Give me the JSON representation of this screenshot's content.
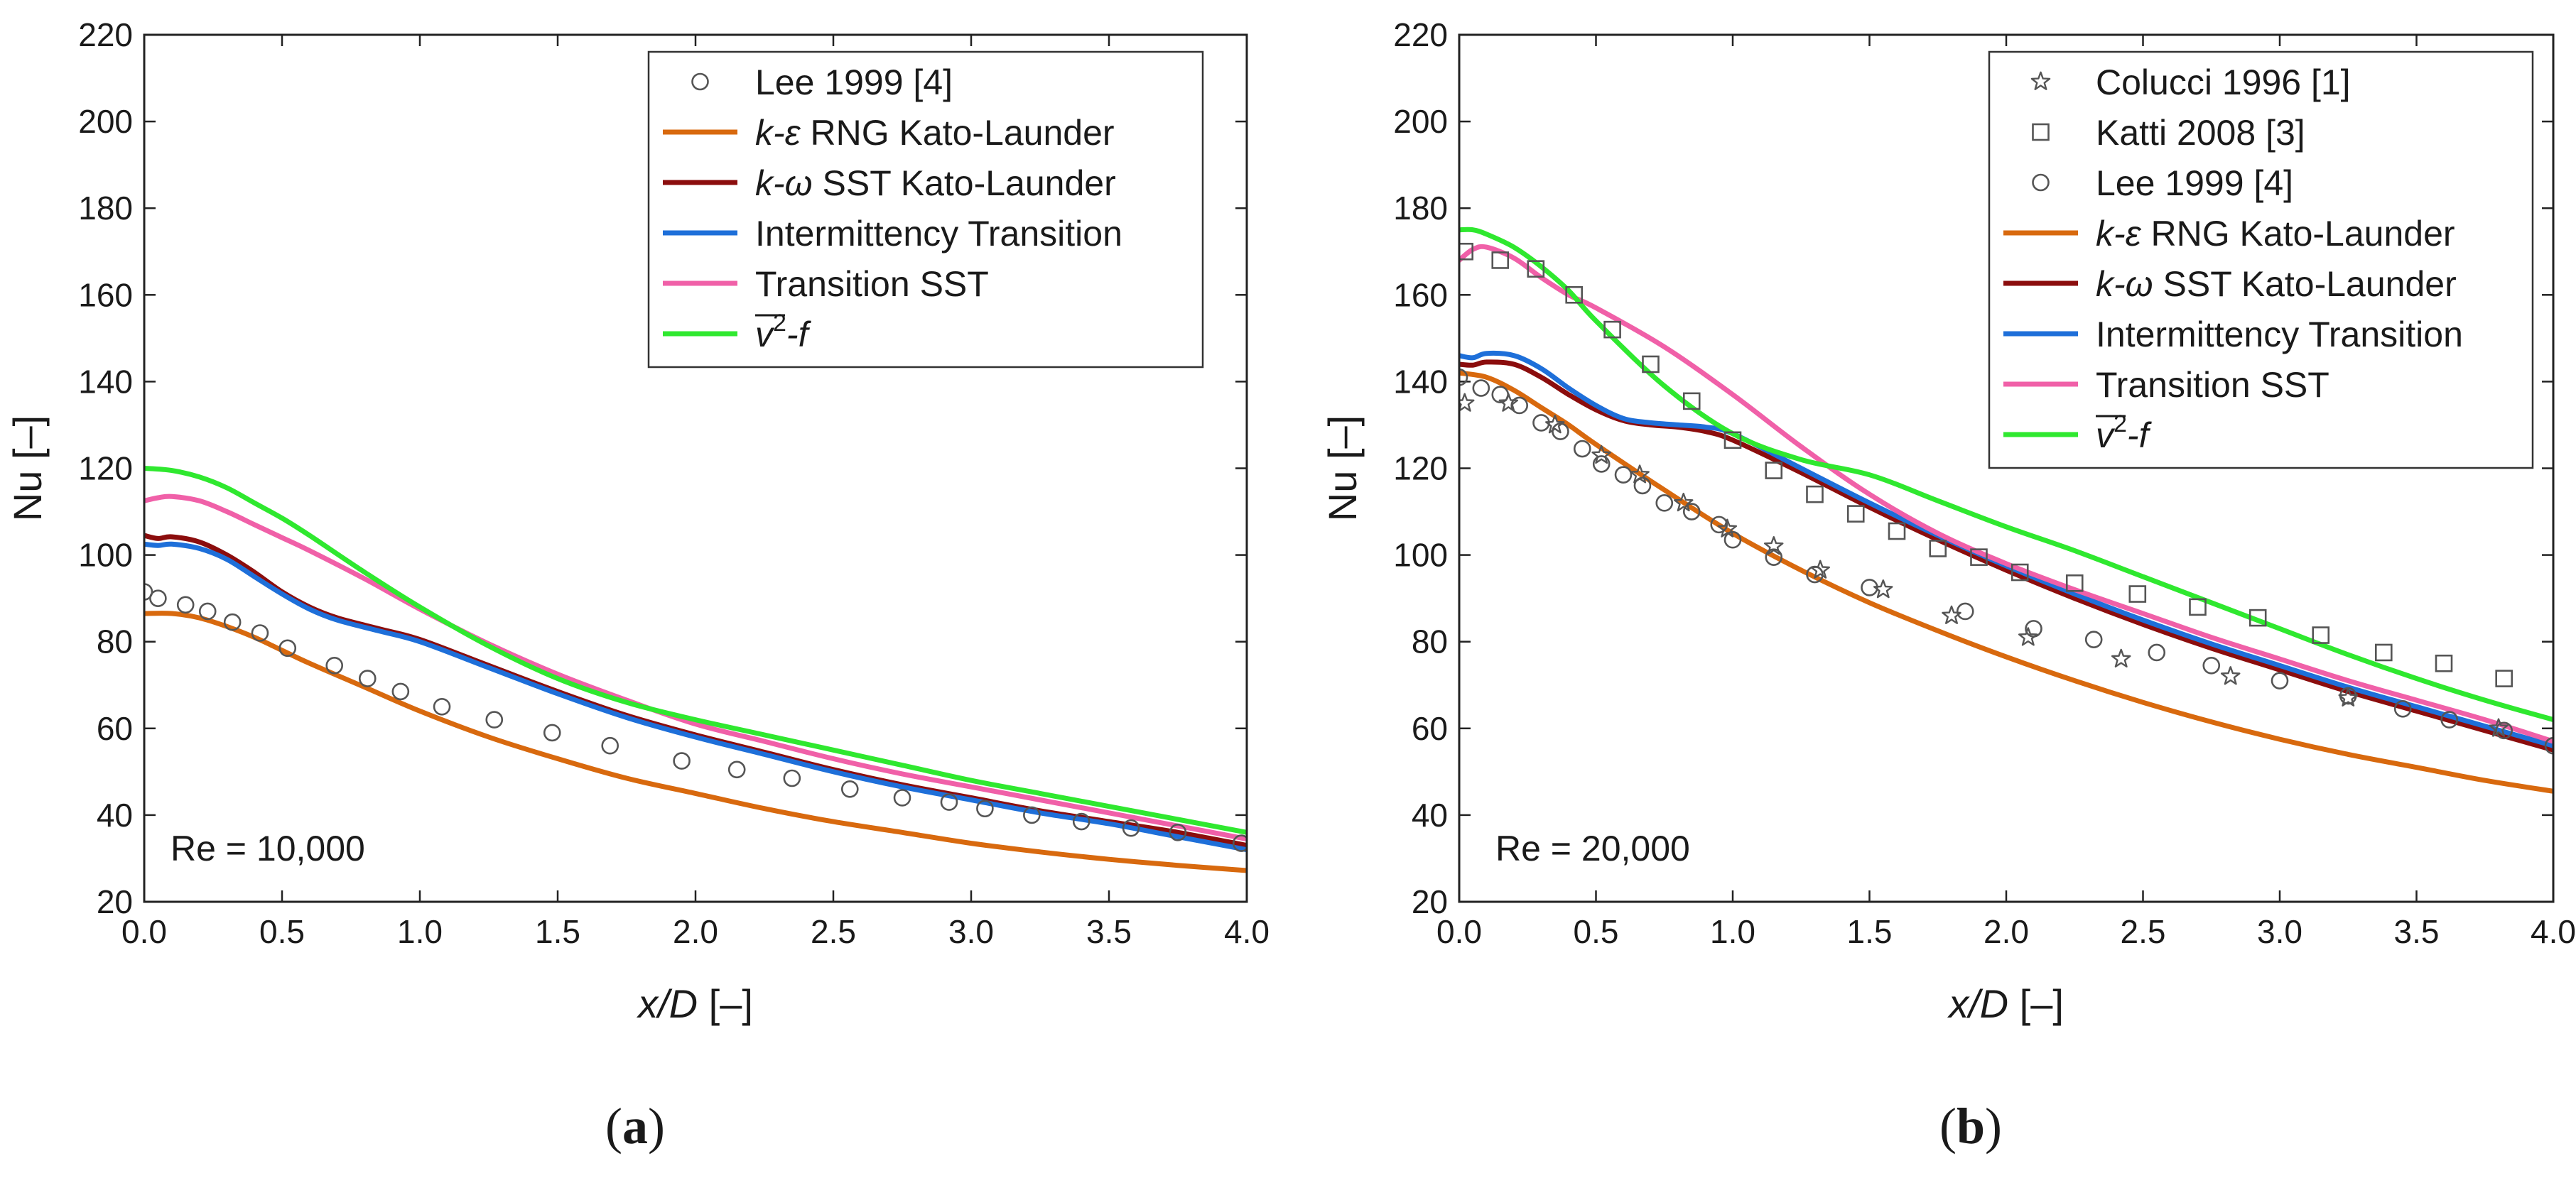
{
  "chart_data": [
    {
      "type": "line",
      "panel": "a",
      "panel_label": "a",
      "annotation": "Re = 10,000",
      "xlabel": {
        "italic": "x/D",
        "rest": " [–]"
      },
      "ylabel": "Nu [–]",
      "xlim": [
        0,
        4
      ],
      "ylim": [
        20,
        220
      ],
      "xticks": [
        "0.0",
        "0.5",
        "1.0",
        "1.5",
        "2.0",
        "2.5",
        "3.0",
        "3.5",
        "4.0"
      ],
      "yticks": [
        "20",
        "40",
        "60",
        "80",
        "100",
        "120",
        "140",
        "160",
        "180",
        "200",
        "220"
      ],
      "legend_position": "top-right",
      "legend_order": [
        "Lee 1999 [4]",
        "k-ε RNG Kato-Launder",
        "k-ω SST Kato-Launder",
        "Intermittency Transition",
        "Transition SST",
        "v2-f"
      ],
      "series": [
        {
          "name": "Lee 1999 [4]",
          "label": "Lee 1999 [4]",
          "kind": "scatter",
          "marker": "circle",
          "x": [
            0.0,
            0.05,
            0.15,
            0.23,
            0.32,
            0.42,
            0.52,
            0.69,
            0.81,
            0.93,
            1.08,
            1.27,
            1.48,
            1.69,
            1.95,
            2.15,
            2.35,
            2.56,
            2.75,
            2.92,
            3.05,
            3.22,
            3.4,
            3.58,
            3.75,
            3.98
          ],
          "y": [
            91.5,
            90,
            88.5,
            87,
            84.5,
            82,
            78.5,
            74.5,
            71.5,
            68.5,
            65,
            62,
            59,
            56,
            52.5,
            50.5,
            48.5,
            46,
            44,
            43,
            41.5,
            40,
            38.5,
            37,
            36,
            33.5
          ]
        },
        {
          "name": "k-ε RNG Kato-Launder",
          "label": "RNG Kato-Launder",
          "italic_prefix": "k-ε",
          "kind": "line",
          "color": "#d8690e",
          "x": [
            0,
            0.1,
            0.2,
            0.3,
            0.4,
            0.5,
            0.6,
            0.8,
            1.0,
            1.25,
            1.5,
            1.75,
            2.0,
            2.25,
            2.5,
            2.75,
            3.0,
            3.25,
            3.5,
            3.75,
            4.0
          ],
          "y": [
            86.5,
            86.5,
            85.5,
            83.5,
            81,
            78,
            75,
            69.5,
            64,
            58,
            53,
            48.5,
            45,
            41.5,
            38.5,
            36,
            33.5,
            31.5,
            29.8,
            28.4,
            27.2
          ]
        },
        {
          "name": "k-ω SST Kato-Launder",
          "label": "SST Kato-Launder",
          "italic_prefix": "k-ω",
          "kind": "line",
          "color": "#8b0d0d",
          "x": [
            0,
            0.05,
            0.1,
            0.2,
            0.3,
            0.4,
            0.5,
            0.6,
            0.7,
            0.85,
            1.0,
            1.25,
            1.5,
            1.75,
            2.0,
            2.25,
            2.5,
            2.75,
            3.0,
            3.25,
            3.5,
            3.75,
            4.0
          ],
          "y": [
            104.5,
            103.8,
            104.2,
            103,
            100,
            96,
            91.5,
            88,
            85.5,
            83,
            80.5,
            74.5,
            68.5,
            63,
            58.5,
            54.5,
            50.5,
            47,
            44,
            41,
            38.5,
            36,
            33
          ]
        },
        {
          "name": "Intermittency Transition",
          "label": "Intermittency Transition",
          "kind": "line",
          "color": "#1e6fd9",
          "x": [
            0,
            0.05,
            0.1,
            0.2,
            0.3,
            0.4,
            0.5,
            0.6,
            0.7,
            0.85,
            1.0,
            1.25,
            1.5,
            1.75,
            2.0,
            2.25,
            2.5,
            2.75,
            3.0,
            3.25,
            3.5,
            3.75,
            4.0
          ],
          "y": [
            102.5,
            102.2,
            102.5,
            101.5,
            99,
            95,
            91,
            87.5,
            85,
            82.5,
            80,
            74,
            68,
            62.5,
            58,
            54,
            50,
            46.5,
            43.5,
            40.5,
            38,
            35,
            32
          ]
        },
        {
          "name": "Transition SST",
          "label": "Transition SST",
          "kind": "line",
          "color": "#f060a8",
          "x": [
            0,
            0.05,
            0.1,
            0.2,
            0.3,
            0.4,
            0.5,
            0.6,
            0.8,
            1.0,
            1.25,
            1.5,
            1.75,
            2.0,
            2.25,
            2.5,
            2.75,
            3.0,
            3.25,
            3.5,
            3.75,
            4.0
          ],
          "y": [
            112.5,
            113.2,
            113.5,
            112.5,
            110,
            107,
            104,
            101,
            94.5,
            87.5,
            79.5,
            72.5,
            66.5,
            61,
            57,
            53,
            49.5,
            46.5,
            43.5,
            40.5,
            37.5,
            34.5
          ]
        },
        {
          "name": "v2-f",
          "label": "-f",
          "kind": "line",
          "color": "#2fe82f",
          "x": [
            0,
            0.1,
            0.2,
            0.3,
            0.4,
            0.5,
            0.6,
            0.8,
            1.0,
            1.25,
            1.5,
            1.75,
            2.0,
            2.25,
            2.5,
            2.75,
            3.0,
            3.25,
            3.5,
            3.75,
            4.0
          ],
          "y": [
            120,
            119.5,
            118,
            115.5,
            112,
            108.5,
            104.5,
            96,
            88,
            79,
            71.5,
            66,
            62,
            58.5,
            55,
            51.5,
            48,
            45,
            42,
            39,
            36
          ]
        }
      ]
    },
    {
      "type": "line",
      "panel": "b",
      "panel_label": "b",
      "annotation": "Re = 20,000",
      "xlabel": {
        "italic": "x/D",
        "rest": " [–]"
      },
      "ylabel": "Nu [–]",
      "xlim": [
        0,
        4
      ],
      "ylim": [
        20,
        220
      ],
      "xticks": [
        "0.0",
        "0.5",
        "1.0",
        "1.5",
        "2.0",
        "2.5",
        "3.0",
        "3.5",
        "4.0"
      ],
      "yticks": [
        "20",
        "40",
        "60",
        "80",
        "100",
        "120",
        "140",
        "160",
        "180",
        "200",
        "220"
      ],
      "legend_position": "top-right",
      "legend_order": [
        "Colucci 1996 [1]",
        "Katti 2008 [3]",
        "Lee 1999 [4]",
        "k-ε RNG Kato-Launder",
        "k-ω SST Kato-Launder",
        "Intermittency Transition",
        "Transition SST",
        "v2-f"
      ],
      "series": [
        {
          "name": "Colucci 1996 [1]",
          "label": "Colucci 1996 [1]",
          "kind": "scatter",
          "marker": "star",
          "x": [
            0.02,
            0.18,
            0.35,
            0.52,
            0.66,
            0.82,
            0.98,
            1.15,
            1.32,
            1.55,
            1.8,
            2.08,
            2.42,
            2.82,
            3.25,
            3.8
          ],
          "y": [
            135,
            135,
            130,
            123,
            118.5,
            112,
            106,
            102,
            96.5,
            92,
            86,
            81,
            76,
            72,
            67,
            60
          ]
        },
        {
          "name": "Katti 2008 [3]",
          "label": "Katti 2008 [3]",
          "kind": "scatter",
          "marker": "square",
          "x": [
            0.02,
            0.15,
            0.28,
            0.42,
            0.56,
            0.7,
            0.85,
            1.0,
            1.15,
            1.3,
            1.45,
            1.6,
            1.75,
            1.9,
            2.05,
            2.25,
            2.48,
            2.7,
            2.92,
            3.15,
            3.38,
            3.6,
            3.82
          ],
          "y": [
            170,
            168,
            166,
            160,
            152,
            144,
            135.5,
            126.5,
            119.5,
            114,
            109.5,
            105.5,
            101.5,
            99.5,
            96,
            93.5,
            91,
            88,
            85.5,
            81.5,
            77.5,
            75,
            71.5
          ]
        },
        {
          "name": "Lee 1999 [4]",
          "label": "Lee 1999 [4]",
          "kind": "scatter",
          "marker": "circle",
          "x": [
            0.0,
            0.08,
            0.15,
            0.22,
            0.3,
            0.37,
            0.45,
            0.52,
            0.6,
            0.67,
            0.75,
            0.85,
            0.95,
            1.0,
            1.15,
            1.3,
            1.5,
            1.85,
            2.1,
            2.32,
            2.55,
            2.75,
            3.0,
            3.25,
            3.45,
            3.62,
            3.82,
            4.0
          ],
          "y": [
            141,
            138.5,
            137,
            134.5,
            130.5,
            128.5,
            124.5,
            121,
            118.5,
            116,
            112,
            110,
            107,
            103.5,
            99.5,
            95.5,
            92.5,
            87,
            83,
            80.5,
            77.5,
            74.5,
            71,
            67.5,
            64.5,
            62,
            59.5,
            56
          ]
        },
        {
          "name": "k-ε RNG Kato-Launder",
          "label": "RNG Kato-Launder",
          "italic_prefix": "k-ε",
          "kind": "line",
          "color": "#d8690e",
          "x": [
            0,
            0.1,
            0.2,
            0.3,
            0.4,
            0.5,
            0.75,
            1.0,
            1.25,
            1.5,
            1.75,
            2.0,
            2.25,
            2.5,
            2.75,
            3.0,
            3.25,
            3.5,
            3.75,
            4.0
          ],
          "y": [
            142,
            141,
            138,
            134,
            130,
            125.5,
            115,
            105,
            96.5,
            89,
            82.5,
            76.5,
            71,
            66,
            61.5,
            57.5,
            54,
            51,
            48,
            45.5
          ]
        },
        {
          "name": "k-ω SST Kato-Launder",
          "label": "SST Kato-Launder",
          "italic_prefix": "k-ω",
          "kind": "line",
          "color": "#8b0d0d",
          "x": [
            0,
            0.05,
            0.1,
            0.2,
            0.3,
            0.4,
            0.5,
            0.6,
            0.7,
            0.8,
            0.9,
            1.0,
            1.25,
            1.5,
            1.75,
            2.0,
            2.25,
            2.5,
            2.75,
            3.0,
            3.25,
            3.5,
            3.75,
            4.0
          ],
          "y": [
            144,
            143.8,
            144.5,
            144,
            141,
            137,
            133.5,
            131,
            130,
            129.5,
            128.5,
            126.5,
            119,
            111,
            103.5,
            96.5,
            90,
            84,
            78.5,
            73.5,
            68.5,
            64,
            59.5,
            55
          ]
        },
        {
          "name": "Intermittency Transition",
          "label": "Intermittency Transition",
          "kind": "line",
          "color": "#1e6fd9",
          "x": [
            0,
            0.05,
            0.1,
            0.2,
            0.3,
            0.4,
            0.5,
            0.6,
            0.7,
            0.8,
            0.9,
            1.0,
            1.25,
            1.5,
            1.75,
            2.0,
            2.25,
            2.5,
            2.75,
            3.0,
            3.25,
            3.5,
            3.75,
            4.0
          ],
          "y": [
            146,
            145.5,
            146.5,
            146,
            143,
            138.5,
            134.5,
            131.5,
            130.5,
            130,
            129.5,
            128,
            120,
            112,
            104.5,
            97.5,
            91,
            85,
            79.5,
            74.5,
            69.5,
            65,
            60.5,
            56
          ]
        },
        {
          "name": "Transition SST",
          "label": "Transition SST",
          "kind": "line",
          "color": "#f060a8",
          "x": [
            0,
            0.05,
            0.1,
            0.2,
            0.3,
            0.4,
            0.5,
            0.75,
            1.0,
            1.25,
            1.5,
            1.75,
            2.0,
            2.25,
            2.5,
            2.75,
            3.0,
            3.25,
            3.5,
            3.75,
            4.0
          ],
          "y": [
            168,
            170.5,
            171,
            168.5,
            164,
            160,
            157,
            148,
            137,
            125,
            114,
            105,
            98,
            92,
            86.5,
            81,
            76,
            71,
            66.5,
            62,
            57
          ]
        },
        {
          "name": "v2-f",
          "label": "-f",
          "kind": "line",
          "color": "#2fe82f",
          "x": [
            0,
            0.05,
            0.1,
            0.2,
            0.3,
            0.4,
            0.5,
            0.75,
            1.0,
            1.25,
            1.5,
            1.75,
            2.0,
            2.25,
            2.5,
            2.75,
            3.0,
            3.25,
            3.5,
            3.75,
            4.0
          ],
          "y": [
            175,
            175,
            174,
            171,
            166.5,
            161,
            154,
            139,
            128,
            122,
            118.5,
            112.5,
            106.5,
            101,
            95,
            89,
            83,
            77,
            71.5,
            66.5,
            62
          ]
        }
      ]
    }
  ]
}
